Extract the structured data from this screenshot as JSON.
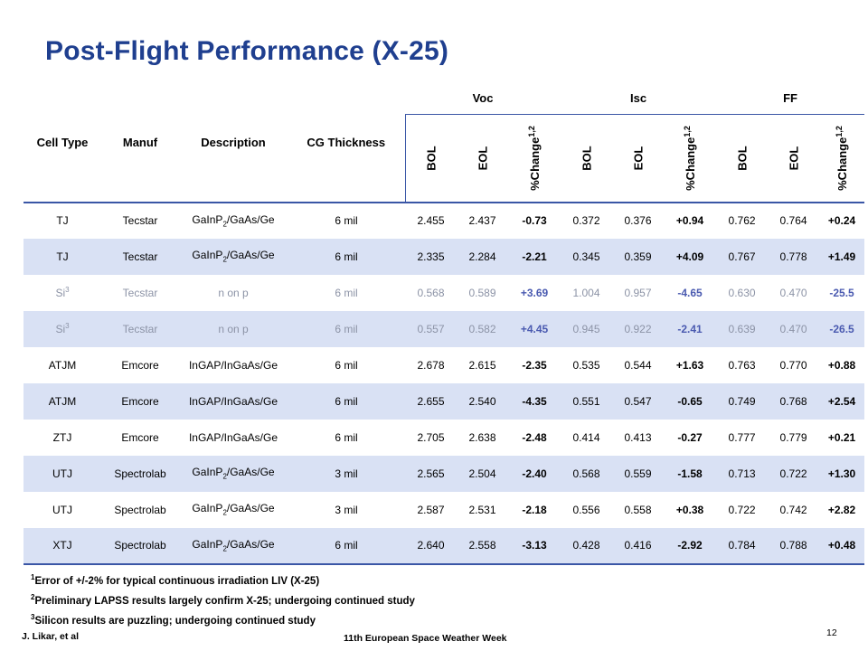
{
  "title": "Post-Flight Performance (X-25)",
  "headers": {
    "cell_type": "Cell Type",
    "manuf": "Manuf",
    "description": "Description",
    "cg_thickness": "CG Thickness",
    "groups": [
      "Voc",
      "Isc",
      "FF"
    ],
    "sub_bol": "BOL",
    "sub_eol": "EOL",
    "sub_change": "%Change",
    "sub_change_sup": "1,2"
  },
  "rows": [
    {
      "cell": "TJ",
      "cell_sup": "",
      "manuf": "Tecstar",
      "desc_a": "GaInP",
      "desc_sub": "2",
      "desc_b": "/GaAs/Ge",
      "cg": "6 mil",
      "voc_bol": "2.455",
      "voc_eol": "2.437",
      "voc_chg": "-0.73",
      "isc_bol": "0.372",
      "isc_eol": "0.376",
      "isc_chg": "+0.94",
      "ff_bol": "0.762",
      "ff_eol": "0.764",
      "ff_chg": "+0.24",
      "shade": false,
      "grey": false
    },
    {
      "cell": "TJ",
      "cell_sup": "",
      "manuf": "Tecstar",
      "desc_a": "GaInP",
      "desc_sub": "2",
      "desc_b": "/GaAs/Ge",
      "cg": "6 mil",
      "voc_bol": "2.335",
      "voc_eol": "2.284",
      "voc_chg": "-2.21",
      "isc_bol": "0.345",
      "isc_eol": "0.359",
      "isc_chg": "+4.09",
      "ff_bol": "0.767",
      "ff_eol": "0.778",
      "ff_chg": "+1.49",
      "shade": true,
      "grey": false
    },
    {
      "cell": "Si",
      "cell_sup": "3",
      "manuf": "Tecstar",
      "desc_a": "n on p",
      "desc_sub": "",
      "desc_b": "",
      "cg": "6 mil",
      "voc_bol": "0.568",
      "voc_eol": "0.589",
      "voc_chg": "+3.69",
      "isc_bol": "1.004",
      "isc_eol": "0.957",
      "isc_chg": "-4.65",
      "ff_bol": "0.630",
      "ff_eol": "0.470",
      "ff_chg": "-25.5",
      "shade": false,
      "grey": true
    },
    {
      "cell": "Si",
      "cell_sup": "3",
      "manuf": "Tecstar",
      "desc_a": "n on p",
      "desc_sub": "",
      "desc_b": "",
      "cg": "6 mil",
      "voc_bol": "0.557",
      "voc_eol": "0.582",
      "voc_chg": "+4.45",
      "isc_bol": "0.945",
      "isc_eol": "0.922",
      "isc_chg": "-2.41",
      "ff_bol": "0.639",
      "ff_eol": "0.470",
      "ff_chg": "-26.5",
      "shade": true,
      "grey": true
    },
    {
      "cell": "ATJM",
      "cell_sup": "",
      "manuf": "Emcore",
      "desc_a": "InGAP/InGaAs/Ge",
      "desc_sub": "",
      "desc_b": "",
      "cg": "6 mil",
      "voc_bol": "2.678",
      "voc_eol": "2.615",
      "voc_chg": "-2.35",
      "isc_bol": "0.535",
      "isc_eol": "0.544",
      "isc_chg": "+1.63",
      "ff_bol": "0.763",
      "ff_eol": "0.770",
      "ff_chg": "+0.88",
      "shade": false,
      "grey": false
    },
    {
      "cell": "ATJM",
      "cell_sup": "",
      "manuf": "Emcore",
      "desc_a": "InGAP/InGaAs/Ge",
      "desc_sub": "",
      "desc_b": "",
      "cg": "6 mil",
      "voc_bol": "2.655",
      "voc_eol": "2.540",
      "voc_chg": "-4.35",
      "isc_bol": "0.551",
      "isc_eol": "0.547",
      "isc_chg": "-0.65",
      "ff_bol": "0.749",
      "ff_eol": "0.768",
      "ff_chg": "+2.54",
      "shade": true,
      "grey": false
    },
    {
      "cell": "ZTJ",
      "cell_sup": "",
      "manuf": "Emcore",
      "desc_a": "InGAP/InGaAs/Ge",
      "desc_sub": "",
      "desc_b": "",
      "cg": "6 mil",
      "voc_bol": "2.705",
      "voc_eol": "2.638",
      "voc_chg": "-2.48",
      "isc_bol": "0.414",
      "isc_eol": "0.413",
      "isc_chg": "-0.27",
      "ff_bol": "0.777",
      "ff_eol": "0.779",
      "ff_chg": "+0.21",
      "shade": false,
      "grey": false
    },
    {
      "cell": "UTJ",
      "cell_sup": "",
      "manuf": "Spectrolab",
      "desc_a": "GaInP",
      "desc_sub": "2",
      "desc_b": "/GaAs/Ge",
      "cg": "3 mil",
      "voc_bol": "2.565",
      "voc_eol": "2.504",
      "voc_chg": "-2.40",
      "isc_bol": "0.568",
      "isc_eol": "0.559",
      "isc_chg": "-1.58",
      "ff_bol": "0.713",
      "ff_eol": "0.722",
      "ff_chg": "+1.30",
      "shade": true,
      "grey": false
    },
    {
      "cell": "UTJ",
      "cell_sup": "",
      "manuf": "Spectrolab",
      "desc_a": "GaInP",
      "desc_sub": "2",
      "desc_b": "/GaAs/Ge",
      "cg": "3 mil",
      "voc_bol": "2.587",
      "voc_eol": "2.531",
      "voc_chg": "-2.18",
      "isc_bol": "0.556",
      "isc_eol": "0.558",
      "isc_chg": "+0.38",
      "ff_bol": "0.722",
      "ff_eol": "0.742",
      "ff_chg": "+2.82",
      "shade": false,
      "grey": false
    },
    {
      "cell": "XTJ",
      "cell_sup": "",
      "manuf": "Spectrolab",
      "desc_a": "GaInP",
      "desc_sub": "2",
      "desc_b": "/GaAs/Ge",
      "cg": "6 mil",
      "voc_bol": "2.640",
      "voc_eol": "2.558",
      "voc_chg": "-3.13",
      "isc_bol": "0.428",
      "isc_eol": "0.416",
      "isc_chg": "-2.92",
      "ff_bol": "0.784",
      "ff_eol": "0.788",
      "ff_chg": "+0.48",
      "shade": true,
      "grey": false
    }
  ],
  "notes": [
    {
      "sup": "1",
      "text": "Error of +/-2% for typical continuous irradiation LIV (X-25)"
    },
    {
      "sup": "2",
      "text": "Preliminary LAPSS results largely confirm X-25; undergoing continued study"
    },
    {
      "sup": "3",
      "text": "Silicon results are puzzling; undergoing continued study"
    }
  ],
  "footer": {
    "author": "J. Likar, et al",
    "event": "11th European Space Weather Week",
    "page": "12"
  },
  "colors": {
    "title": "#1f3f8f",
    "rule": "#3a56a6",
    "shade": "#d9e1f4"
  }
}
